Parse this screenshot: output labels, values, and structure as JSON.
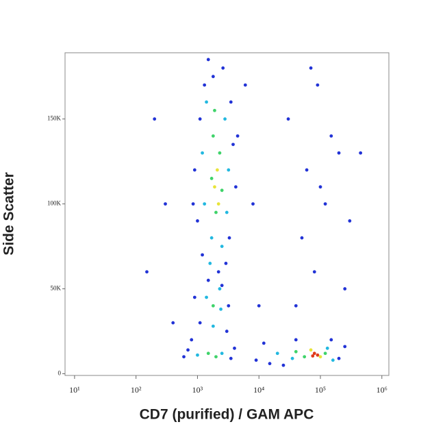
{
  "chart_data": {
    "type": "scatter",
    "xscale": "log",
    "x_label": "CD7 (purified) / GAM APC",
    "y_label": "Side Scatter",
    "xlim": [
      7,
      1300000
    ],
    "ylim": [
      -1000,
      189000
    ],
    "xticks": [
      {
        "value": 10,
        "label": "10¹"
      },
      {
        "value": 100,
        "label": "10²"
      },
      {
        "value": 1000,
        "label": "10³"
      },
      {
        "value": 10000,
        "label": "10⁴"
      },
      {
        "value": 100000,
        "label": "10⁵"
      },
      {
        "value": 1000000,
        "label": "10⁶"
      }
    ],
    "yticks": [
      0,
      {
        "value": 50000,
        "label": "50K"
      },
      {
        "value": 100000,
        "label": "100K"
      },
      {
        "value": 150000,
        "label": "150K"
      }
    ],
    "series": [
      {
        "color": "#2233d6",
        "x": [
          1100,
          1300,
          3500,
          900,
          4200,
          1500,
          2600,
          3800,
          1000,
          3300,
          1200,
          2900,
          1800,
          4500,
          850,
          2200,
          900,
          3200,
          1100,
          3000,
          1500,
          2500,
          800,
          600,
          700,
          3500,
          4000,
          12000,
          9000,
          200000,
          250000,
          15000,
          40000,
          150000,
          25000,
          30000,
          60000,
          90000,
          120000,
          50000,
          200000,
          80000,
          150000,
          70000,
          300000,
          40000,
          100000,
          250000,
          450000,
          200,
          300,
          150,
          400,
          8000,
          6000,
          10000
        ],
        "values": [
          150000,
          170000,
          160000,
          120000,
          110000,
          185000,
          180000,
          135000,
          90000,
          80000,
          70000,
          65000,
          175000,
          140000,
          100000,
          60000,
          45000,
          40000,
          30000,
          25000,
          55000,
          52000,
          20000,
          10000,
          14000,
          9000,
          15000,
          18000,
          8000,
          9000,
          16000,
          6000,
          20000,
          20000,
          5000,
          150000,
          120000,
          170000,
          100000,
          80000,
          130000,
          60000,
          140000,
          180000,
          90000,
          40000,
          110000,
          50000,
          130000,
          150000,
          100000,
          60000,
          30000,
          100000,
          170000,
          40000
        ]
      },
      {
        "color": "#22b8e0",
        "x": [
          1400,
          2800,
          1200,
          3200,
          1300,
          3000,
          1700,
          2500,
          1400,
          2400,
          1800,
          2300,
          1000,
          2500,
          20000,
          35000,
          130000,
          160000,
          1600
        ],
        "values": [
          160000,
          150000,
          130000,
          120000,
          100000,
          95000,
          80000,
          75000,
          45000,
          38000,
          28000,
          50000,
          11000,
          12000,
          12000,
          9000,
          15000,
          8000,
          65000
        ]
      },
      {
        "color": "#3fd36a",
        "x": [
          1800,
          2300,
          1700,
          2500,
          2000,
          1900,
          1800,
          1500,
          2000,
          40000,
          55000,
          120000
        ],
        "values": [
          140000,
          130000,
          115000,
          108000,
          95000,
          155000,
          40000,
          12000,
          10000,
          13000,
          10000,
          12000
        ]
      },
      {
        "color": "#e8e43a",
        "x": [
          2100,
          1900,
          2200,
          70000,
          100000
        ],
        "values": [
          120000,
          110000,
          100000,
          14000,
          10000
        ]
      },
      {
        "color": "#e03a1a",
        "x": [
          80000,
          90000,
          75000
        ],
        "values": [
          12000,
          11000,
          10500
        ]
      }
    ]
  }
}
